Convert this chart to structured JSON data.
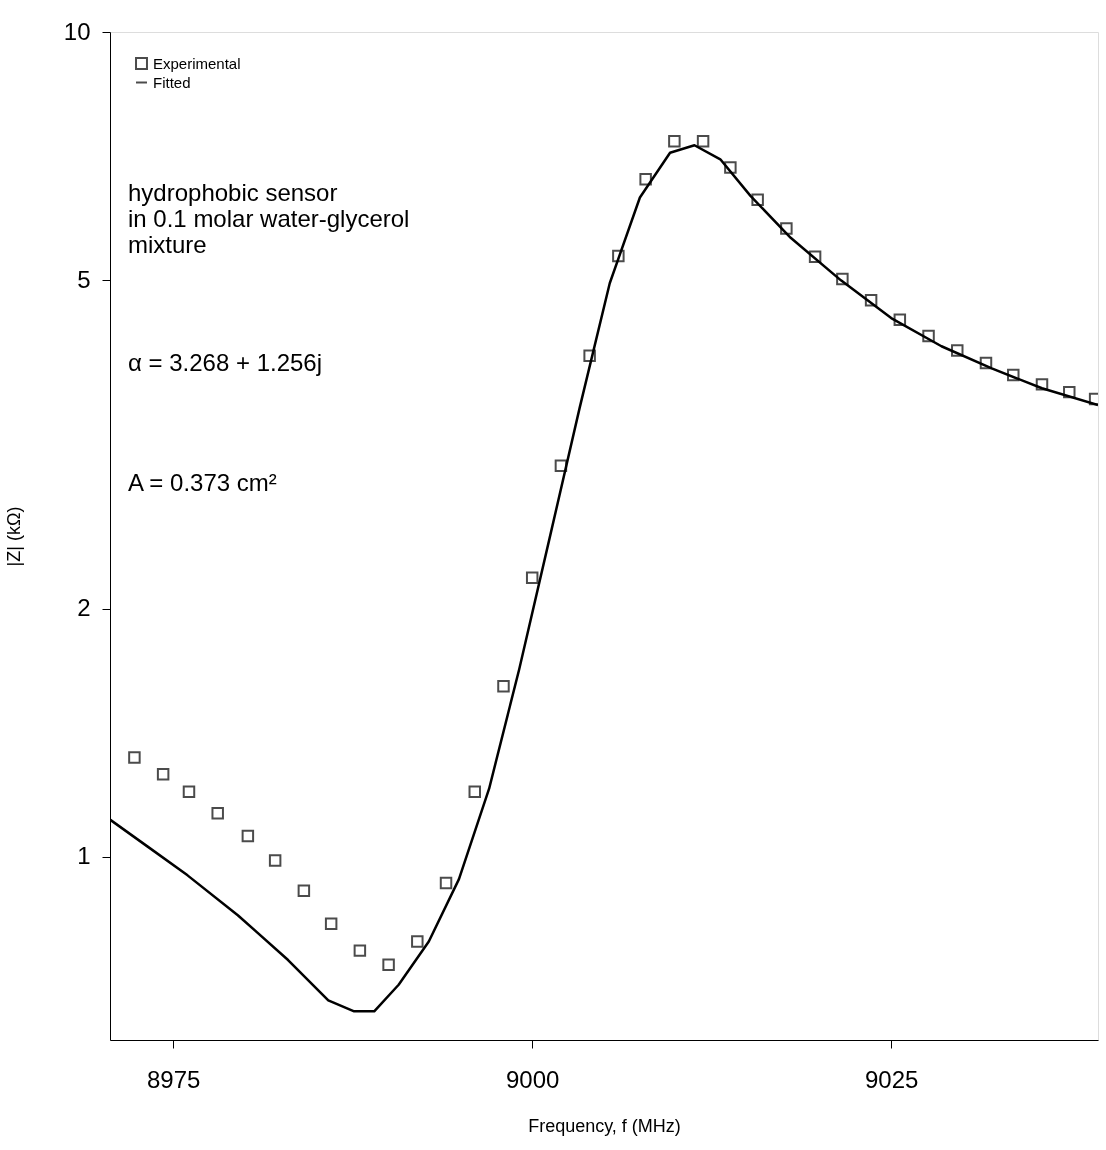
{
  "chart_data": {
    "type": "scatter",
    "xlabel": "Frequency, f (MHz)",
    "ylabel": "|Z| (kΩ)",
    "xlim": [
      8970.6,
      9039.4
    ],
    "xticks": [
      8975,
      9000,
      9025
    ],
    "ylim": [
      0.6,
      10
    ],
    "yticks": [
      1,
      2,
      5,
      10
    ],
    "log": "y",
    "grid": false,
    "legend": "top left",
    "annotations": [
      "hydrophobic sensor\nin 0.1 molar water-glycerol\nmixture",
      "α = 3.268 + 1.256j",
      "A = 0.373 cm²"
    ],
    "series": [
      {
        "name": "Experimental",
        "type": "scatter",
        "marker": "square",
        "color": "#000000",
        "x": [
          8972.3,
          8974.3,
          8976.1,
          8978.1,
          8980.2,
          8982.1,
          8984.1,
          8986.0,
          8988.0,
          8990.0,
          8992.0,
          8994.0,
          8996.0,
          8998.0,
          9000.0,
          9002.0,
          9004.0,
          9006.0,
          9007.9,
          9009.9,
          9011.9,
          9013.8,
          9015.7,
          9017.7,
          9019.7,
          9021.6,
          9023.6,
          9025.6,
          9027.6,
          9029.6,
          9031.6,
          9033.5,
          9035.5,
          9037.4,
          9039.2
        ],
        "values": [
          1.32,
          1.26,
          1.2,
          1.13,
          1.06,
          0.99,
          0.91,
          0.83,
          0.77,
          0.74,
          0.79,
          0.93,
          1.2,
          1.61,
          2.18,
          2.98,
          4.05,
          5.35,
          6.63,
          7.37,
          7.37,
          6.85,
          6.26,
          5.78,
          5.34,
          5.02,
          4.73,
          4.48,
          4.28,
          4.11,
          3.97,
          3.84,
          3.74,
          3.66,
          3.59
        ]
      },
      {
        "name": "Fitted",
        "type": "line",
        "marker": "none",
        "line_style": "solid",
        "color": "#000000",
        "x": [
          8970.6,
          8973.2,
          8976.0,
          8979.5,
          8983.0,
          8985.8,
          8987.6,
          8989.0,
          8990.7,
          8992.8,
          8994.9,
          8997.0,
          8999.1,
          9001.2,
          9003.3,
          9005.4,
          9007.5,
          9009.6,
          9011.3,
          9013.1,
          9015.2,
          9018.0,
          9021.5,
          9025.0,
          9028.5,
          9032.0,
          9035.5,
          9039.4
        ],
        "values": [
          1.11,
          1.03,
          0.95,
          0.85,
          0.75,
          0.67,
          0.65,
          0.65,
          0.7,
          0.79,
          0.94,
          1.21,
          1.69,
          2.43,
          3.5,
          4.96,
          6.3,
          7.14,
          7.29,
          7.01,
          6.33,
          5.63,
          5.0,
          4.5,
          4.16,
          3.91,
          3.7,
          3.53
        ]
      }
    ]
  }
}
